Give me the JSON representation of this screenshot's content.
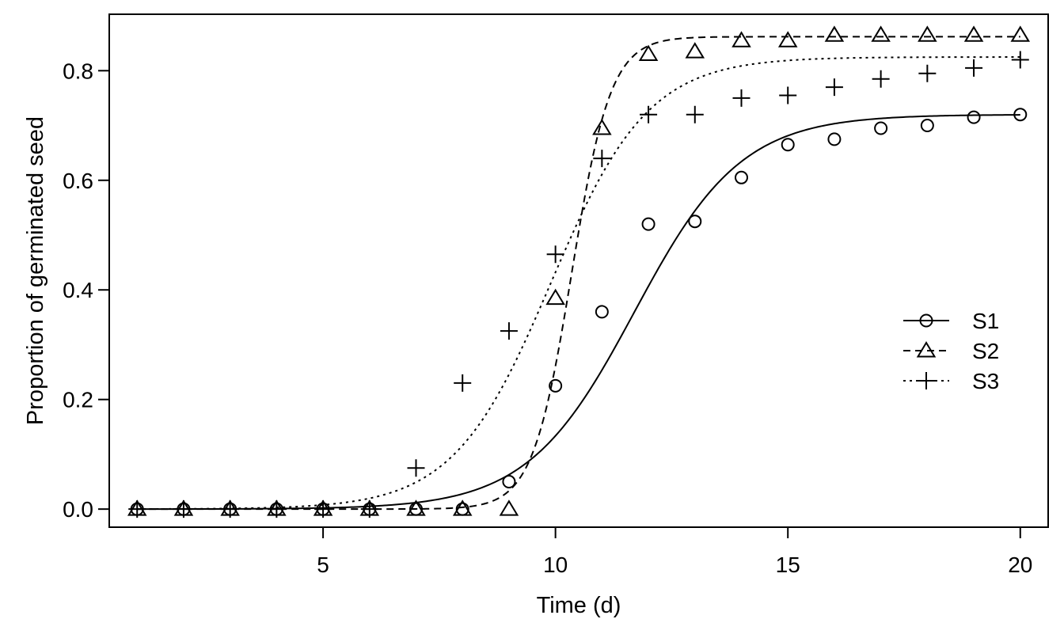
{
  "chart_data": {
    "type": "scatter",
    "title": "",
    "xlabel": "Time (d)",
    "ylabel": "Proportion of germinated seed",
    "xlim": [
      0.4,
      20.6
    ],
    "ylim": [
      -0.033,
      0.903
    ],
    "xticks": [
      5,
      10,
      15,
      20
    ],
    "xtick_labels": [
      "5",
      "10",
      "15",
      "20"
    ],
    "yticks": [
      0.0,
      0.2,
      0.4,
      0.6,
      0.8
    ],
    "ytick_labels": [
      "0.0",
      "0.2",
      "0.4",
      "0.6",
      "0.8"
    ],
    "grid": false,
    "legend_position": "right",
    "x": [
      1,
      2,
      3,
      4,
      5,
      6,
      7,
      8,
      9,
      10,
      11,
      12,
      13,
      14,
      15,
      16,
      17,
      18,
      19,
      20
    ],
    "series": [
      {
        "name": "S1",
        "marker": "circle",
        "line_style": "solid",
        "values": [
          0,
          0,
          0,
          0,
          0,
          0,
          0,
          0,
          0.05,
          0.225,
          0.36,
          0.52,
          0.525,
          0.605,
          0.665,
          0.675,
          0.695,
          0.7,
          0.715,
          0.72
        ],
        "fit": {
          "model": "logistic",
          "upper": 0.72,
          "midpoint": 11.7,
          "scale": 1.15
        }
      },
      {
        "name": "S2",
        "marker": "triangle",
        "line_style": "dashed",
        "values": [
          0,
          0,
          0,
          0,
          0,
          0,
          0,
          0,
          0,
          0.385,
          0.695,
          0.83,
          0.835,
          0.855,
          0.855,
          0.865,
          0.865,
          0.865,
          0.865,
          0.865
        ],
        "fit": {
          "model": "logistic",
          "upper": 0.862,
          "midpoint": 10.35,
          "scale": 0.42
        }
      },
      {
        "name": "S3",
        "marker": "plus",
        "line_style": "dotted",
        "values": [
          0,
          0,
          0,
          0,
          0,
          0,
          0.075,
          0.23,
          0.325,
          0.465,
          0.64,
          0.72,
          0.72,
          0.75,
          0.755,
          0.77,
          0.785,
          0.795,
          0.805,
          0.82
        ],
        "fit": {
          "model": "logistic",
          "upper": 0.825,
          "midpoint": 9.9,
          "scale": 1.05
        }
      }
    ]
  }
}
